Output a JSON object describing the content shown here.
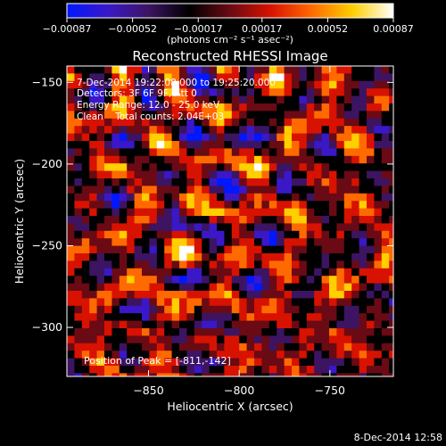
{
  "chart_data": {
    "type": "heatmap",
    "title": "Reconstructed RHESSI Image",
    "xlabel": "Heliocentric X (arcsec)",
    "ylabel": "Heliocentric Y (arcsec)",
    "xlim": [
      -895,
      -715
    ],
    "ylim": [
      -330,
      -140
    ],
    "x_ticks": [
      -850,
      -800,
      -750
    ],
    "x_tick_labels": [
      "−850",
      "−800",
      "−750"
    ],
    "y_ticks": [
      -150,
      -200,
      -250,
      -300
    ],
    "y_tick_labels": [
      "−150",
      "−200",
      "−250",
      "−300"
    ],
    "colorbar": {
      "range": [
        -0.00087,
        0.00087
      ],
      "ticks": [
        -0.00087,
        -0.00052,
        -0.00017,
        0.00017,
        0.00052,
        0.00087
      ],
      "tick_labels": [
        "−0.00087",
        "−0.00052",
        "−0.00017",
        "0.00017",
        "0.00052",
        "0.00087"
      ],
      "units": "(photons cm⁻² s⁻¹ asec⁻²)",
      "colors": [
        "#0018ff",
        "#3a18c8",
        "#3c1462",
        "#000000",
        "#6a0a14",
        "#d81200",
        "#ff6a00",
        "#ffcf00",
        "#ffffff"
      ]
    },
    "annotations": [
      "7-Dec-2014 19:22:08.000 to 19:25:20.000",
      "Detectors: 3F 6F 9F, Att 0",
      "Energy Range: 12.0 - 25.0 keV",
      "Clean    Total counts: 2.04E+03"
    ],
    "peak_label": "Position of Peak = [-811,-142]",
    "peak_position": [
      -811,
      -142
    ],
    "grid": false,
    "image_pattern": "ring-like interference of bright (red/yellow) and faint (blue/purple) pixels on a coarse grid"
  },
  "footer": {
    "timestamp": "8-Dec-2014 12:58"
  }
}
